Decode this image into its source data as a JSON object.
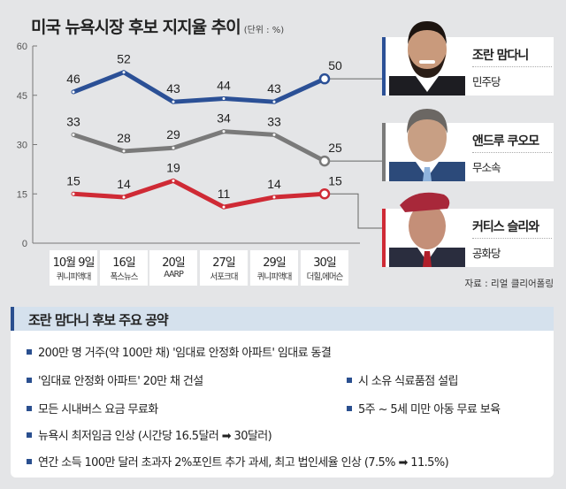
{
  "header": {
    "title": "미국 뉴욕시장 후보 지지율 추이",
    "unit": "(단위 : %)"
  },
  "chart_data": {
    "type": "line",
    "title": "미국 뉴욕시장 후보 지지율 추이",
    "unit": "%",
    "ylim": [
      0,
      60
    ],
    "yticks": [
      "0",
      "15",
      "30",
      "45",
      "60"
    ],
    "categories": [
      {
        "date": "10월 9일",
        "pollster": "퀴니피액대"
      },
      {
        "date": "16일",
        "pollster": "폭스뉴스"
      },
      {
        "date": "20일",
        "pollster": "AARP"
      },
      {
        "date": "27일",
        "pollster": "서포크대"
      },
      {
        "date": "29일",
        "pollster": "퀴니피액대"
      },
      {
        "date": "30일",
        "pollster": "더힐,에머슨"
      }
    ],
    "series": [
      {
        "name": "조란 맘다니",
        "party": "민주당",
        "color": "#2b5096",
        "values": [
          46,
          52,
          43,
          44,
          43,
          50
        ]
      },
      {
        "name": "앤드루 쿠오모",
        "party": "무소속",
        "color": "#7a7a7a",
        "values": [
          33,
          28,
          29,
          34,
          33,
          25
        ]
      },
      {
        "name": "커티스 슬리와",
        "party": "공화당",
        "color": "#cf2a35",
        "values": [
          15,
          14,
          19,
          11,
          14,
          15
        ]
      }
    ],
    "source": "자료 : 리얼 클리어폴링"
  },
  "pledges": {
    "title": "조란 맘다니 후보 주요 공약",
    "items": [
      "200만 명 거주(약 100만 채) '임대료 안정화 아파트' 임대료 동결",
      "'임대료 안정화 아파트' 20만 채 건설",
      "시 소유 식료품점 설립",
      "모든 시내버스 요금 무료화",
      "5주 ~ 5세 미만 아동 무료 보육",
      "뉴욕시 최저임금 인상 (시간당 16.5달러 ➡ 30달러)",
      "연간 소득 100만 달러 초과자 2%포인트 추가 과세, 최고 법인세율 인상 (7.5% ➡ 11.5%)"
    ]
  }
}
